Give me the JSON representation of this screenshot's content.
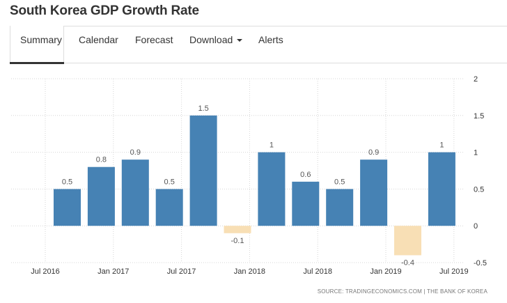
{
  "page": {
    "title": "South Korea GDP Growth Rate"
  },
  "tabs": [
    {
      "label": "Summary",
      "active": true
    },
    {
      "label": "Calendar"
    },
    {
      "label": "Forecast"
    },
    {
      "label": "Download",
      "has_dropdown": true
    },
    {
      "label": "Alerts"
    }
  ],
  "colors": {
    "positive_bar": "#4682b4",
    "negative_bar": "#f8dfb5",
    "grid": "#d6d6d6"
  },
  "source": "SOURCE: TRADINGECONOMICS.COM | THE BANK OF KOREA",
  "chart_data": {
    "type": "bar",
    "categories": [
      "2016 Q3",
      "2016 Q4",
      "2017 Q1",
      "2017 Q2",
      "2017 Q3",
      "2017 Q4",
      "2018 Q1",
      "2018 Q2",
      "2018 Q3",
      "2018 Q4",
      "2019 Q1",
      "2019 Q2"
    ],
    "values": [
      0.5,
      0.8,
      0.9,
      0.5,
      1.5,
      -0.1,
      1.0,
      0.6,
      0.5,
      0.9,
      -0.4,
      1.0
    ],
    "value_labels": [
      "0.5",
      "0.8",
      "0.9",
      "0.5",
      "1.5",
      "-0.1",
      "1",
      "0.6",
      "0.5",
      "0.9",
      "-0.4",
      "1"
    ],
    "x_tick_labels": [
      "Jul 2016",
      "Jan 2017",
      "Jul 2017",
      "Jan 2018",
      "Jul 2018",
      "Jan 2019",
      "Jul 2019"
    ],
    "y_ticks": [
      2,
      1.5,
      1,
      0.5,
      0,
      -0.5
    ],
    "y_tick_labels": [
      "2",
      "1.5",
      "1",
      "0.5",
      "0",
      "-0.5"
    ],
    "ylim": [
      -0.5,
      2
    ],
    "y_axis_side": "right",
    "grid": "dotted",
    "legend": "none"
  }
}
